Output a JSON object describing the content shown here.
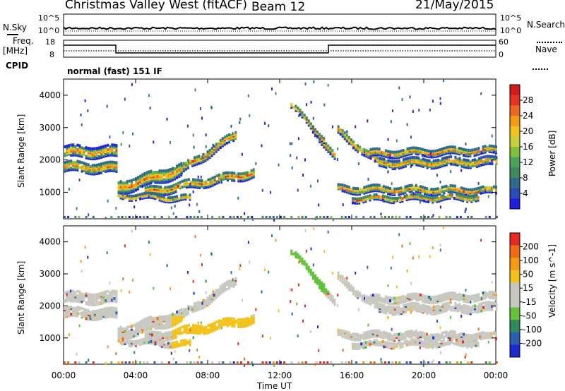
{
  "header": {
    "radar": "Christmas Valley West (fitACF)",
    "beam": "Beam 12",
    "date": "21/May/2015"
  },
  "nsky_panel": {
    "label_left": "N.Sky",
    "label_right": "N.Search",
    "tick_top": "10^5",
    "tick_bottom": "10^0"
  },
  "freq_panel": {
    "label_line1": "Freq.",
    "label_line2": "[MHz]",
    "ticks_left": [
      "18",
      "8"
    ],
    "ticks_right": [
      "60",
      "0"
    ],
    "label_right": "Nave"
  },
  "cpid": {
    "label": "CPID",
    "value": "normal (fast) 151 IF"
  },
  "chart_data": [
    {
      "type": "heatmap",
      "title": "Power",
      "ylabel": "Slant Range [km]",
      "ylim": [
        180,
        4500
      ],
      "y_ticks": [
        "4000",
        "3000",
        "2000",
        "1000"
      ],
      "colorbar": {
        "label": "Power [dB]",
        "ticks": [
          "28",
          "24",
          "20",
          "16",
          "12",
          "8",
          "4"
        ],
        "colors": [
          "#1e1ee6",
          "#2a4bb8",
          "#2f6a8c",
          "#3f8a5c",
          "#4aa35a",
          "#7fbf3a",
          "#c8d13a",
          "#f2c21a",
          "#f59a14",
          "#f0661e",
          "#e63222",
          "#d41a1a"
        ]
      }
    },
    {
      "type": "heatmap",
      "title": "Velocity",
      "ylabel": "Slant Range [km]",
      "xlabel": "Time UT",
      "ylim": [
        180,
        4500
      ],
      "y_ticks": [
        "4000",
        "3000",
        "2000",
        "1000"
      ],
      "x_ticks": [
        "00:00",
        "04:00",
        "08:00",
        "12:00",
        "16:00",
        "20:00",
        "00:00"
      ],
      "colorbar": {
        "label": "Velocity [m s^-1]",
        "ticks": [
          "200",
          "100",
          "50",
          "15",
          "-15",
          "-50",
          "-100",
          "-200"
        ],
        "colors": [
          "#1a2ad0",
          "#2a5fb0",
          "#2f8a5a",
          "#62c23a",
          "#c8c8c0",
          "#c8c8c0",
          "#f2c21a",
          "#f59a14",
          "#f06a14",
          "#e62a22"
        ]
      }
    }
  ]
}
